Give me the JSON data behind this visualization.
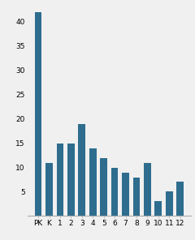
{
  "categories": [
    "PK",
    "K",
    "1",
    "2",
    "3",
    "4",
    "5",
    "6",
    "7",
    "8",
    "9",
    "10",
    "11",
    "12"
  ],
  "values": [
    42,
    11,
    15,
    15,
    19,
    14,
    12,
    10,
    9,
    8,
    11,
    3,
    5,
    7
  ],
  "bar_color": "#2e6d8e",
  "ylim": [
    0,
    44
  ],
  "yticks": [
    5,
    10,
    15,
    20,
    25,
    30,
    35,
    40
  ],
  "background_color": "#f0f0f0",
  "tick_fontsize": 6.5,
  "bar_width": 0.65,
  "figsize": [
    2.4,
    2.96
  ],
  "dpi": 100
}
